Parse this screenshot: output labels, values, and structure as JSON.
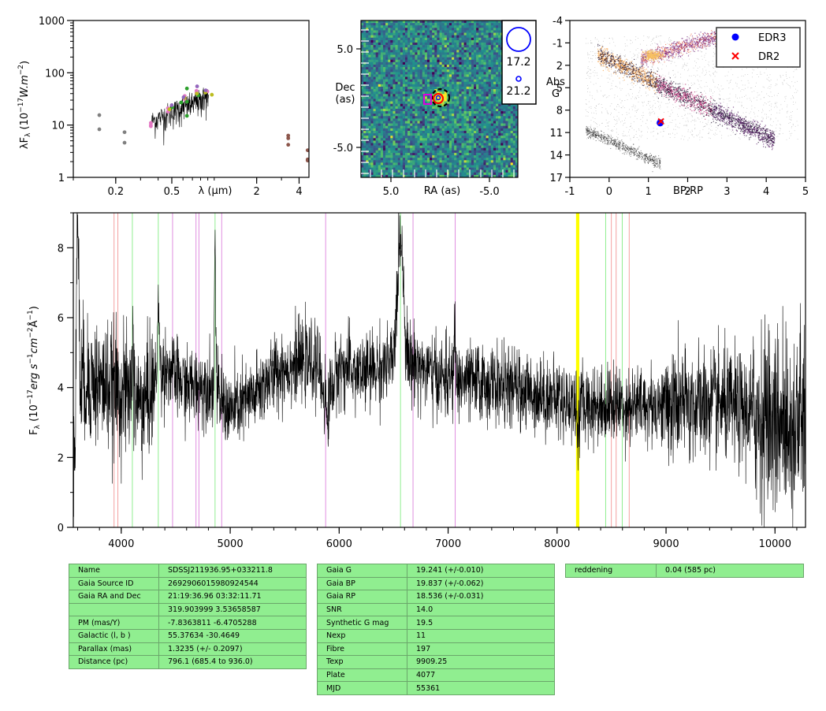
{
  "chart_data": [
    {
      "type": "scatter",
      "panel": "sed",
      "ylabel": "λF_λ (10^-17 W.m^-2)",
      "xlabel": "λ (μm)",
      "x_ticks": [
        0.2,
        0.5,
        2,
        4
      ],
      "y_ticks": [
        1,
        10,
        100,
        1000
      ],
      "x_scale": "log",
      "y_scale": "log",
      "xlim": [
        0.1,
        4.7
      ],
      "ylim": [
        1,
        1000
      ],
      "colors": {
        "galex": "#808080",
        "sdss": "#e377c2",
        "gaia": "#2ca02c",
        "ps": "#bcbd22",
        "skymapper": "#9467bd",
        "wise": "#8c564b",
        "vista": "#ff7f0e"
      },
      "series": [
        {
          "key": "galex",
          "points": [
            [
              0.153,
              15.5
            ],
            [
              0.153,
              8.3
            ],
            [
              0.231,
              7.3
            ],
            [
              0.231,
              4.6
            ]
          ]
        },
        {
          "key": "sdss",
          "points": [
            [
              0.355,
              11
            ],
            [
              0.355,
              10
            ],
            [
              0.355,
              9.5
            ],
            [
              0.469,
              18
            ],
            [
              0.469,
              21
            ],
            [
              0.617,
              31
            ],
            [
              0.617,
              36
            ],
            [
              0.748,
              41
            ],
            [
              0.748,
              45
            ],
            [
              0.893,
              44
            ]
          ]
        },
        {
          "key": "gaia",
          "points": [
            [
              0.505,
              22
            ],
            [
              0.582,
              27
            ],
            [
              0.64,
              28
            ],
            [
              0.64,
              15
            ],
            [
              0.64,
              50
            ],
            [
              0.77,
              37
            ]
          ]
        },
        {
          "key": "ps",
          "points": [
            [
              0.481,
              20
            ],
            [
              0.617,
              33
            ],
            [
              0.752,
              40
            ],
            [
              0.866,
              42
            ],
            [
              0.962,
              38
            ]
          ]
        },
        {
          "key": "skymapper",
          "points": [
            [
              0.5,
              24
            ],
            [
              0.606,
              34
            ],
            [
              0.756,
              55
            ],
            [
              0.87,
              46
            ]
          ]
        },
        {
          "key": "wise",
          "points": [
            [
              3.35,
              6.3
            ],
            [
              3.35,
              5.6
            ],
            [
              3.35,
              4.2
            ],
            [
              4.6,
              3.3
            ],
            [
              4.6,
              2.2
            ],
            [
              4.6,
              2.1
            ]
          ]
        }
      ]
    },
    {
      "type": "heatmap",
      "panel": "image",
      "xlabel": "RA (as)",
      "ylabel": "Dec\n(as)",
      "x_ticks": [
        "5.0",
        "-5.0"
      ],
      "y_ticks": [
        "5.0",
        "-5.0"
      ],
      "legend": {
        "mag_large": "17.2",
        "mag_small": "21.2"
      }
    },
    {
      "type": "scatter",
      "panel": "hrd",
      "xlabel": "BP-RP",
      "ylabel": "Abs\nG",
      "xlim": [
        -1,
        5
      ],
      "ylim": [
        17,
        -4
      ],
      "x_ticks": [
        "-1",
        "0",
        "1",
        "2",
        "3",
        "4",
        "5"
      ],
      "y_ticks": [
        "-4",
        "-1",
        "2",
        "5",
        "8",
        "11",
        "14",
        "17"
      ],
      "legend_position": "top-right",
      "series": [
        {
          "name": "EDR3",
          "color": "#0000ff",
          "marker": "circle",
          "x": [
            1.3
          ],
          "y": [
            9.7
          ]
        },
        {
          "name": "DR2",
          "color": "#ff0000",
          "marker": "x",
          "x": [
            1.32
          ],
          "y": [
            9.5
          ]
        }
      ]
    },
    {
      "type": "line",
      "panel": "spectrum",
      "ylabel": "F_λ (10^-17 erg s^-1 cm^-2 Å^-1)",
      "xlim": [
        3560,
        10280
      ],
      "ylim": [
        0,
        9
      ],
      "x_ticks": [
        "4000",
        "5000",
        "6000",
        "7000",
        "8000",
        "9000",
        "10000"
      ],
      "y_ticks": [
        "0",
        "2",
        "4",
        "6",
        "8"
      ],
      "continuum": [
        [
          3560,
          4.3
        ],
        [
          3800,
          4.1
        ],
        [
          4000,
          3.9
        ],
        [
          4200,
          3.5
        ],
        [
          4400,
          4.6
        ],
        [
          4600,
          4.0
        ],
        [
          4800,
          4.1
        ],
        [
          5000,
          3.3
        ],
        [
          5200,
          3.7
        ],
        [
          5400,
          4.4
        ],
        [
          5600,
          4.7
        ],
        [
          5800,
          4.7
        ],
        [
          5880,
          3.6
        ],
        [
          6000,
          4.6
        ],
        [
          6200,
          4.4
        ],
        [
          6400,
          4.6
        ],
        [
          6560,
          4.7
        ],
        [
          6700,
          4.7
        ],
        [
          6900,
          4.3
        ],
        [
          7100,
          4.2
        ],
        [
          7400,
          4.1
        ],
        [
          7700,
          3.9
        ],
        [
          8000,
          3.7
        ],
        [
          8200,
          3.5
        ],
        [
          8500,
          3.5
        ],
        [
          9000,
          3.5
        ],
        [
          9500,
          3.5
        ],
        [
          10000,
          3.1
        ],
        [
          10280,
          3.0
        ]
      ],
      "features": [
        [
          3590,
          1.2,
          2.5
        ],
        [
          3600,
          9,
          1.5
        ],
        [
          4102,
          5.4,
          0.8
        ],
        [
          4340,
          6.2,
          1.2
        ],
        [
          4861,
          8.2,
          0.8
        ],
        [
          5893,
          2.8,
          0.8
        ],
        [
          6563,
          8.4,
          3.5
        ],
        [
          7060,
          5.6,
          0.8
        ],
        [
          8190,
          2.6,
          0.8
        ]
      ],
      "lines": [
        {
          "x": 3934,
          "color": "#f4a0a0"
        },
        {
          "x": 3969,
          "color": "#f4a0a0"
        },
        {
          "x": 4102,
          "color": "#90ee90"
        },
        {
          "x": 4340,
          "color": "#90ee90"
        },
        {
          "x": 4471,
          "color": "#e08ee0"
        },
        {
          "x": 4686,
          "color": "#e08ee0"
        },
        {
          "x": 4713,
          "color": "#e08ee0"
        },
        {
          "x": 4861,
          "color": "#90ee90"
        },
        {
          "x": 4922,
          "color": "#e08ee0"
        },
        {
          "x": 5876,
          "color": "#e08ee0"
        },
        {
          "x": 6563,
          "color": "#90ee90"
        },
        {
          "x": 6678,
          "color": "#e08ee0"
        },
        {
          "x": 7065,
          "color": "#e08ee0"
        },
        {
          "x": 8183,
          "color": "#ffff00",
          "w": 2.5
        },
        {
          "x": 8195,
          "color": "#ffff00",
          "w": 2.5
        },
        {
          "x": 8446,
          "color": "#90ee90"
        },
        {
          "x": 8498,
          "color": "#f4a0a0"
        },
        {
          "x": 8542,
          "color": "#f4a0a0"
        },
        {
          "x": 8598,
          "color": "#90ee90"
        },
        {
          "x": 8662,
          "color": "#f4a0a0"
        }
      ]
    }
  ],
  "tables": {
    "photometry": [
      {
        "k": "Name",
        "v": "SDSSJ211936.95+033211.8"
      },
      {
        "k": "Gaia Source ID",
        "v": "2692906015980924544"
      },
      {
        "k": "Gaia RA and Dec",
        "v": "21:19:36.96    03:32:11.71"
      },
      {
        "k": "",
        "v": "319.903999    3.53658587"
      },
      {
        "k": "PM (mas/Y)",
        "v": "-7.8363811    -6.4705288"
      },
      {
        "k": "Galactic (l, b )",
        "v": "55.37634    -30.4649"
      },
      {
        "k": "Parallax (mas)",
        "v": "1.3235 (+/- 0.2097)"
      },
      {
        "k": "Distance (pc)",
        "v": "796.1 (685.4 to 936.0)"
      }
    ],
    "gaia": [
      {
        "k": "Gaia G",
        "v": "19.241 (+/-0.010)"
      },
      {
        "k": "Gaia BP",
        "v": "19.837 (+/-0.062)"
      },
      {
        "k": "Gaia RP",
        "v": "18.536 (+/-0.031)"
      },
      {
        "k": "SNR",
        "v": "14.0"
      },
      {
        "k": "Synthetic G mag",
        "v": "19.5"
      },
      {
        "k": "Nexp",
        "v": "11"
      },
      {
        "k": "Fibre",
        "v": "197"
      },
      {
        "k": "Texp",
        "v": "9909.25"
      },
      {
        "k": "Plate",
        "v": "4077"
      },
      {
        "k": "MJD",
        "v": "55361"
      }
    ],
    "extinction": [
      {
        "k": "reddening",
        "v": "0.04 (585 pc)"
      }
    ]
  }
}
